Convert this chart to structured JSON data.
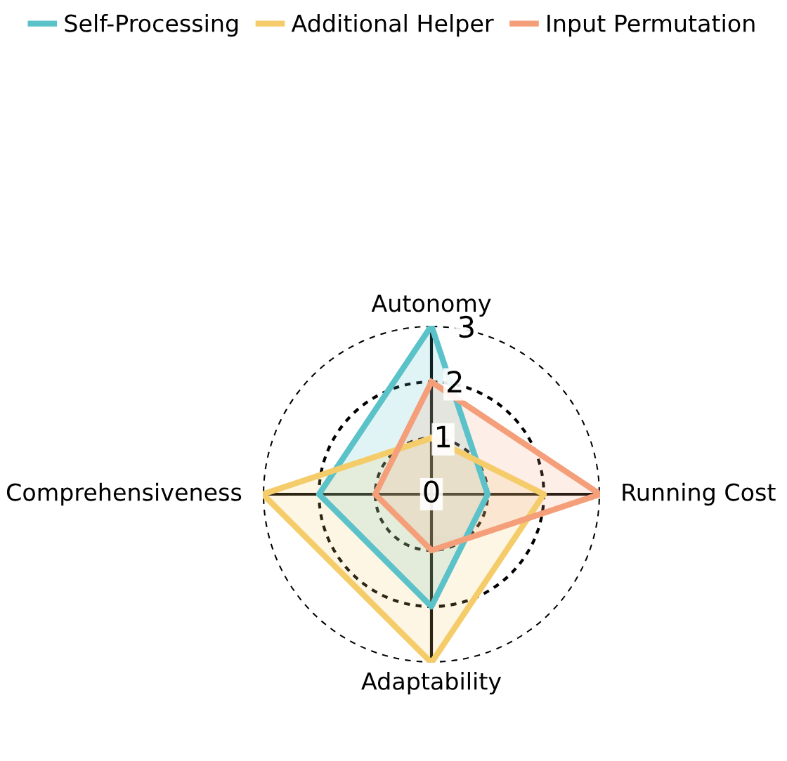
{
  "chart_data": {
    "type": "radar",
    "categories": [
      "Autonomy",
      "Running Cost",
      "Adaptability",
      "Comprehensiveness"
    ],
    "series": [
      {
        "name": "Self-Processing",
        "color": "#5bc2c9",
        "values": [
          3,
          1,
          2,
          2
        ]
      },
      {
        "name": "Additional Helper",
        "color": "#f5cc6a",
        "values": [
          1,
          2,
          3,
          3
        ]
      },
      {
        "name": "Input Permutation",
        "color": "#f49f7a",
        "values": [
          2,
          3,
          1,
          1
        ]
      }
    ],
    "ylim": [
      0,
      3
    ],
    "yticks": [
      0,
      1,
      2,
      3
    ],
    "grid": true,
    "legend": "top"
  }
}
